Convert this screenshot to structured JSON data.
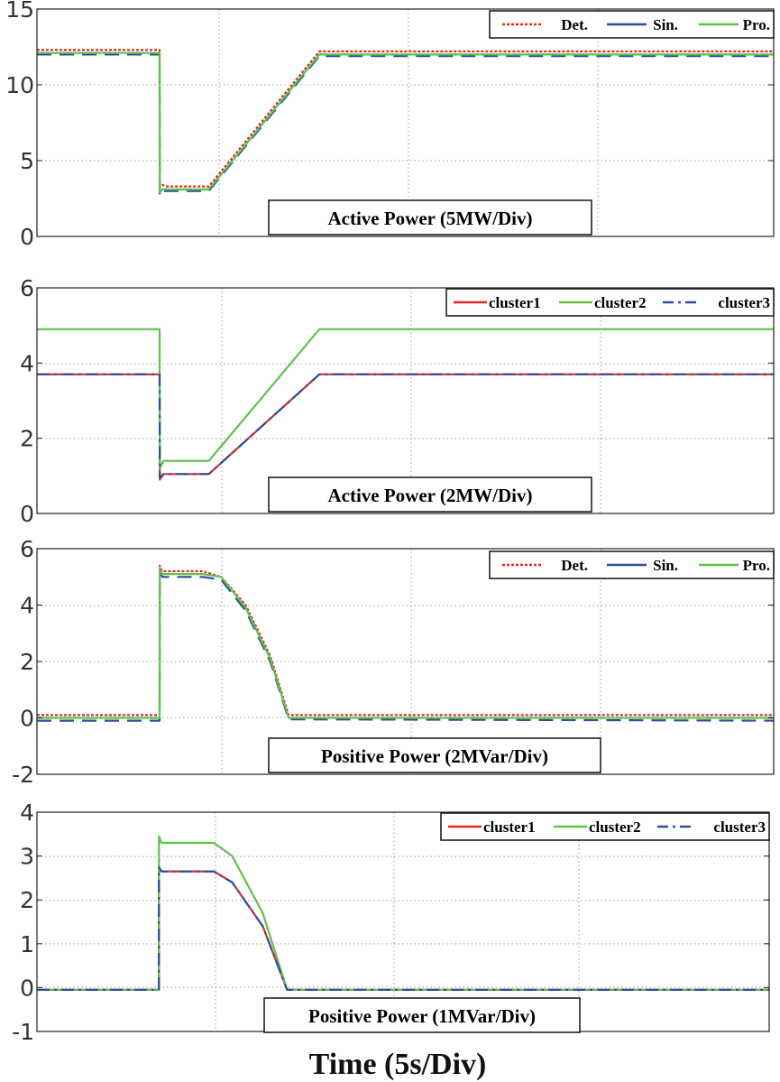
{
  "colors": {
    "red": "#e8262a",
    "blue": "#2a4f9c",
    "green": "#5cc24a"
  },
  "chart_data": [
    {
      "type": "line",
      "title": "Active Power (5MW/Div)",
      "ylim": [
        0,
        15
      ],
      "yticks": [
        "0",
        "5",
        "10",
        "15"
      ],
      "grid": true,
      "legend_position": "top-right",
      "series": [
        {
          "name": "Det.",
          "color": "red",
          "style": "dotted",
          "x": [
            0,
            0.999,
            1.0,
            1.02,
            1.05,
            1.4,
            2.3,
            6
          ],
          "y": [
            12.3,
            12.3,
            3.3,
            3.4,
            3.3,
            3.3,
            12.2,
            12.2
          ]
        },
        {
          "name": "Sin.",
          "color": "blue",
          "style": "dashed",
          "x": [
            0,
            0.999,
            1.0,
            1.02,
            1.05,
            1.4,
            2.3,
            6
          ],
          "y": [
            12.0,
            12.0,
            2.7,
            3.0,
            3.0,
            3.0,
            11.9,
            11.9
          ]
        },
        {
          "name": "Pro.",
          "color": "green",
          "style": "solid",
          "x": [
            0,
            0.999,
            1.0,
            1.02,
            1.05,
            1.4,
            2.3,
            6
          ],
          "y": [
            12.1,
            12.1,
            2.9,
            3.1,
            3.1,
            3.1,
            12.0,
            12.0
          ]
        }
      ]
    },
    {
      "type": "line",
      "title": "Active Power (2MW/Div)",
      "ylim": [
        0,
        6
      ],
      "yticks": [
        "0",
        "2",
        "4",
        "6"
      ],
      "grid": true,
      "legend_position": "top-right",
      "series": [
        {
          "name": "cluster1",
          "color": "red",
          "style": "solid",
          "x": [
            0,
            0.999,
            1.0,
            1.03,
            1.06,
            1.4,
            2.3,
            6
          ],
          "y": [
            3.7,
            3.7,
            0.9,
            1.05,
            1.05,
            1.05,
            3.7,
            3.7
          ]
        },
        {
          "name": "cluster2",
          "color": "green",
          "style": "solid",
          "x": [
            0,
            0.999,
            1.0,
            1.03,
            1.06,
            1.4,
            2.3,
            6
          ],
          "y": [
            4.9,
            4.9,
            1.2,
            1.4,
            1.4,
            1.4,
            4.9,
            4.9
          ]
        },
        {
          "name": "cluster3",
          "color": "blue",
          "style": "dashdot",
          "x": [
            0,
            0.999,
            1.0,
            1.03,
            1.06,
            1.4,
            2.3,
            6
          ],
          "y": [
            3.7,
            3.7,
            0.95,
            1.05,
            1.05,
            1.05,
            3.7,
            3.7
          ]
        }
      ]
    },
    {
      "type": "line",
      "title": "Positive Power (2MVar/Div)",
      "ylim": [
        -2,
        6
      ],
      "yticks": [
        "-2",
        "0",
        "2",
        "4",
        "6"
      ],
      "grid": true,
      "legend_position": "top-right",
      "series": [
        {
          "name": "Det.",
          "color": "red",
          "style": "dotted",
          "x": [
            0,
            0.999,
            1.0,
            1.02,
            1.2,
            1.35,
            1.5,
            1.7,
            1.9,
            2.05,
            6
          ],
          "y": [
            0.1,
            0.1,
            5.4,
            5.2,
            5.2,
            5.2,
            5.0,
            4.0,
            2.2,
            0.1,
            0.1
          ]
        },
        {
          "name": "Sin.",
          "color": "blue",
          "style": "dashed",
          "x": [
            0,
            0.999,
            1.0,
            1.02,
            1.2,
            1.35,
            1.5,
            1.7,
            1.9,
            2.05,
            6
          ],
          "y": [
            -0.1,
            -0.1,
            5.2,
            5.0,
            5.0,
            5.0,
            4.9,
            3.8,
            2.0,
            -0.05,
            -0.1
          ]
        },
        {
          "name": "Pro.",
          "color": "green",
          "style": "solid",
          "x": [
            0,
            0.999,
            1.0,
            1.02,
            1.2,
            1.35,
            1.5,
            1.7,
            1.9,
            2.05,
            6
          ],
          "y": [
            0.0,
            0.0,
            5.3,
            5.1,
            5.1,
            5.1,
            5.0,
            3.9,
            2.1,
            0.0,
            0.0
          ]
        }
      ]
    },
    {
      "type": "line",
      "title": "Positive Power (1MVar/Div)",
      "ylim": [
        -1,
        4
      ],
      "yticks": [
        "-1",
        "0",
        "1",
        "2",
        "3",
        "4"
      ],
      "grid": true,
      "legend_position": "top-right",
      "series": [
        {
          "name": "cluster1",
          "color": "red",
          "style": "solid",
          "x": [
            0,
            0.999,
            1.0,
            1.02,
            1.2,
            1.45,
            1.6,
            1.85,
            2.05,
            6
          ],
          "y": [
            -0.05,
            -0.05,
            2.7,
            2.65,
            2.65,
            2.65,
            2.4,
            1.4,
            -0.05,
            -0.05
          ]
        },
        {
          "name": "cluster2",
          "color": "green",
          "style": "solid",
          "x": [
            0,
            0.999,
            1.0,
            1.02,
            1.2,
            1.45,
            1.6,
            1.85,
            2.05,
            6
          ],
          "y": [
            -0.05,
            -0.05,
            3.45,
            3.3,
            3.3,
            3.3,
            3.0,
            1.7,
            -0.05,
            -0.05
          ]
        },
        {
          "name": "cluster3",
          "color": "blue",
          "style": "dashdot",
          "x": [
            0,
            0.999,
            1.0,
            1.02,
            1.2,
            1.45,
            1.6,
            1.85,
            2.05,
            6
          ],
          "y": [
            -0.05,
            -0.05,
            2.75,
            2.65,
            2.65,
            2.65,
            2.4,
            1.4,
            -0.05,
            -0.05
          ]
        }
      ]
    }
  ],
  "xlabel": "Time (5s/Div)"
}
